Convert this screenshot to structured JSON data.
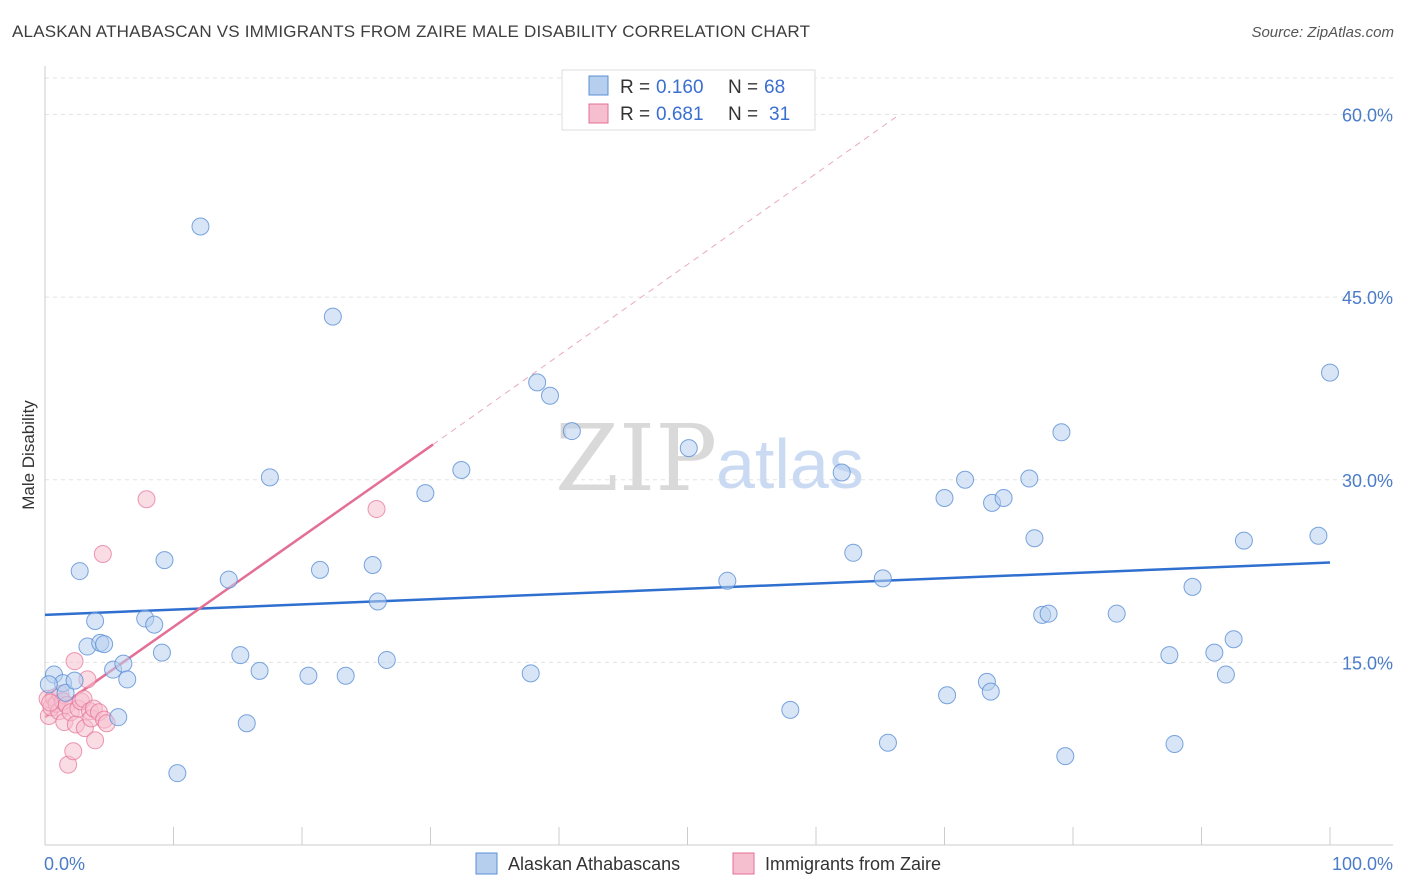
{
  "title": "ALASKAN ATHABASCAN VS IMMIGRANTS FROM ZAIRE MALE DISABILITY CORRELATION CHART",
  "source": "Source: ZipAtlas.com",
  "watermark": {
    "zip": "ZIP",
    "atlas": "atlas"
  },
  "colors": {
    "blue": "#5b8fd6",
    "blue_fill": "#b7cfee",
    "pink": "#e46f96",
    "pink_fill": "#f6bfd0",
    "tick": "#4a7cc7"
  },
  "legend": {
    "series": [
      {
        "r_label": "R =",
        "r_value": "0.160",
        "n_label": "N =",
        "n_value": "68"
      },
      {
        "r_label": "R =",
        "r_value": "0.681",
        "n_label": "N =",
        "n_value": "31"
      }
    ]
  },
  "bottom_legend": [
    "Alaskan Athabascans",
    "Immigrants from Zaire"
  ],
  "chart_data": {
    "type": "scatter",
    "title": "ALASKAN ATHABASCAN VS IMMIGRANTS FROM ZAIRE MALE DISABILITY CORRELATION CHART",
    "xlabel": "",
    "ylabel": "Male Disability",
    "xlim": [
      0,
      100
    ],
    "ylim": [
      0,
      63
    ],
    "x_tick_labels": [
      "0.0%",
      "100.0%"
    ],
    "y_ticks": [
      15,
      30,
      45,
      60
    ],
    "y_tick_labels": [
      "15.0%",
      "30.0%",
      "45.0%",
      "60.0%"
    ],
    "grid": true,
    "series": [
      {
        "name": "Alaskan Athabascans",
        "r": 0.16,
        "n": 68,
        "trend": {
          "x": [
            0,
            100
          ],
          "y": [
            18.9,
            23.2
          ]
        },
        "points": [
          [
            0.7,
            14.0
          ],
          [
            1.4,
            13.3
          ],
          [
            1.6,
            12.5
          ],
          [
            2.3,
            13.5
          ],
          [
            2.7,
            22.5
          ],
          [
            3.3,
            16.3
          ],
          [
            3.9,
            18.4
          ],
          [
            4.3,
            16.6
          ],
          [
            4.6,
            16.5
          ],
          [
            5.3,
            14.4
          ],
          [
            5.7,
            10.5
          ],
          [
            6.1,
            14.9
          ],
          [
            6.4,
            13.6
          ],
          [
            7.8,
            18.6
          ],
          [
            8.5,
            18.1
          ],
          [
            9.1,
            15.8
          ],
          [
            9.3,
            23.4
          ],
          [
            10.3,
            5.9
          ],
          [
            12.1,
            50.8
          ],
          [
            14.3,
            21.8
          ],
          [
            15.2,
            15.6
          ],
          [
            15.7,
            10.0
          ],
          [
            16.7,
            14.3
          ],
          [
            17.5,
            30.2
          ],
          [
            20.5,
            13.9
          ],
          [
            21.4,
            22.6
          ],
          [
            22.4,
            43.4
          ],
          [
            23.4,
            13.9
          ],
          [
            25.5,
            23.0
          ],
          [
            25.9,
            20.0
          ],
          [
            26.6,
            15.2
          ],
          [
            29.6,
            28.9
          ],
          [
            32.4,
            30.8
          ],
          [
            37.8,
            14.1
          ],
          [
            38.3,
            38.0
          ],
          [
            39.3,
            36.9
          ],
          [
            41.0,
            34.0
          ],
          [
            50.1,
            32.6
          ],
          [
            53.1,
            21.7
          ],
          [
            58.0,
            11.1
          ],
          [
            62.0,
            30.6
          ],
          [
            62.9,
            24.0
          ],
          [
            65.2,
            21.9
          ],
          [
            65.6,
            8.4
          ],
          [
            70.0,
            28.5
          ],
          [
            70.2,
            12.3
          ],
          [
            71.6,
            30.0
          ],
          [
            73.3,
            13.4
          ],
          [
            73.6,
            12.6
          ],
          [
            73.7,
            28.1
          ],
          [
            74.6,
            28.5
          ],
          [
            76.6,
            30.1
          ],
          [
            77.0,
            25.2
          ],
          [
            77.6,
            18.9
          ],
          [
            78.1,
            19.0
          ],
          [
            79.1,
            33.9
          ],
          [
            79.4,
            7.3
          ],
          [
            83.4,
            19.0
          ],
          [
            87.5,
            15.6
          ],
          [
            87.9,
            8.3
          ],
          [
            89.3,
            21.2
          ],
          [
            91.0,
            15.8
          ],
          [
            91.9,
            14.0
          ],
          [
            92.5,
            16.9
          ],
          [
            93.3,
            25.0
          ],
          [
            99.1,
            25.4
          ],
          [
            100.0,
            38.8
          ],
          [
            0.3,
            13.2
          ]
        ]
      },
      {
        "name": "Immigrants from Zaire",
        "r": 0.681,
        "n": 31,
        "trend": {
          "x": [
            0,
            30.2
          ],
          "y": [
            10.5,
            32.9
          ]
        },
        "trend_dashed": {
          "x": [
            30.2,
            66.5
          ],
          "y": [
            32.9,
            60.0
          ]
        },
        "points": [
          [
            0.2,
            12.0
          ],
          [
            0.3,
            10.6
          ],
          [
            0.5,
            11.3
          ],
          [
            0.7,
            12.1
          ],
          [
            0.9,
            11.6
          ],
          [
            1.1,
            11.0
          ],
          [
            1.2,
            12.4
          ],
          [
            1.4,
            11.8
          ],
          [
            1.5,
            10.1
          ],
          [
            1.7,
            11.5
          ],
          [
            1.8,
            6.6
          ],
          [
            2.0,
            10.9
          ],
          [
            2.2,
            7.7
          ],
          [
            2.3,
            15.1
          ],
          [
            2.4,
            9.9
          ],
          [
            2.6,
            11.2
          ],
          [
            2.8,
            11.8
          ],
          [
            3.0,
            12.0
          ],
          [
            3.1,
            9.6
          ],
          [
            3.3,
            13.6
          ],
          [
            3.5,
            11.0
          ],
          [
            3.6,
            10.4
          ],
          [
            3.8,
            11.2
          ],
          [
            3.9,
            8.6
          ],
          [
            4.2,
            10.9
          ],
          [
            4.5,
            23.9
          ],
          [
            4.6,
            10.3
          ],
          [
            4.8,
            10.0
          ],
          [
            7.9,
            28.4
          ],
          [
            25.8,
            27.6
          ],
          [
            0.4,
            11.7
          ]
        ]
      }
    ]
  }
}
